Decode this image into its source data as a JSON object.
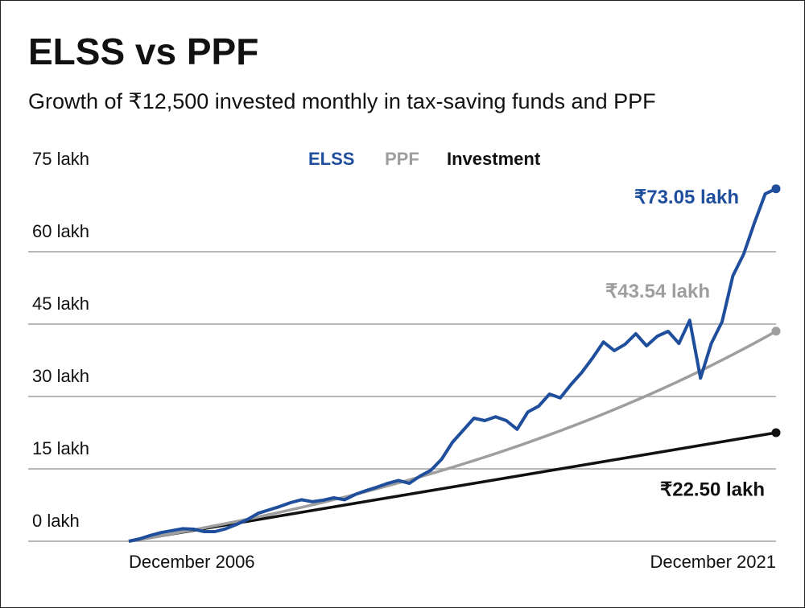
{
  "chart_data": {
    "type": "line",
    "title": "ELSS vs PPF",
    "subtitle": "Growth of ₹12,500 invested monthly in tax-saving funds and PPF",
    "categories": [
      "December 2006",
      null,
      null,
      null,
      null,
      null,
      null,
      null,
      null,
      null,
      null,
      null,
      null,
      null,
      null,
      null,
      null,
      null,
      null,
      null,
      null,
      null,
      null,
      null,
      null,
      null,
      null,
      null,
      null,
      null,
      null,
      null,
      null,
      null,
      null,
      null,
      null,
      null,
      null,
      null,
      null,
      null,
      null,
      null,
      null,
      null,
      null,
      null,
      null,
      null,
      null,
      null,
      null,
      null,
      null,
      null,
      null,
      null,
      null,
      null,
      "December 2021"
    ],
    "ylim": [
      0,
      75
    ],
    "yticks": [
      {
        "value": 0,
        "label": "0 lakh"
      },
      {
        "value": 15,
        "label": "15 lakh"
      },
      {
        "value": 30,
        "label": "30 lakh"
      },
      {
        "value": 45,
        "label": "45 lakh"
      },
      {
        "value": 60,
        "label": "60 lakh"
      },
      {
        "value": 75,
        "label": "75 lakh"
      }
    ],
    "grid": true,
    "legend": "top",
    "series": [
      {
        "name": "ELSS",
        "color": "#1f4e9c",
        "values": [
          0,
          0.5,
          1.2,
          1.8,
          2.2,
          2.6,
          2.5,
          2.0,
          2.0,
          2.6,
          3.5,
          4.5,
          5.8,
          6.5,
          7.2,
          8.0,
          8.6,
          8.2,
          8.5,
          9.0,
          8.6,
          9.7,
          10.5,
          11.2,
          12.0,
          12.6,
          12.0,
          13.5,
          14.7,
          17.0,
          20.5,
          23.0,
          25.5,
          25.0,
          25.8,
          25.0,
          23.2,
          26.8,
          28.0,
          30.5,
          29.7,
          32.5,
          35.0,
          38.0,
          41.3,
          39.5,
          40.8,
          43.0,
          40.5,
          42.5,
          43.5,
          41.0,
          45.8,
          33.8,
          41.0,
          45.5,
          55.0,
          59.5,
          66.0,
          72.0,
          73.05
        ],
        "value_labels": [
          null,
          null,
          null,
          null,
          null,
          null,
          null,
          null,
          null,
          null,
          null,
          null,
          null,
          null,
          null,
          null,
          null,
          null,
          null,
          null,
          null,
          null,
          null,
          null,
          null,
          null,
          null,
          null,
          null,
          null,
          null,
          null,
          null,
          null,
          null,
          null,
          null,
          null,
          null,
          null,
          null,
          null,
          null,
          null,
          null,
          null,
          null,
          null,
          null,
          null,
          null,
          null,
          null,
          null,
          null,
          null,
          null,
          null,
          null,
          null,
          "₹73.05 lakh"
        ]
      },
      {
        "name": "PPF",
        "color": "#9e9e9e",
        "values": [
          0,
          0.375,
          0.757,
          1.149,
          1.546,
          1.953,
          2.368,
          2.791,
          3.225,
          3.665,
          4.115,
          4.574,
          5.042,
          5.521,
          6.012,
          6.509,
          7.017,
          7.536,
          8.065,
          8.606,
          9.156,
          9.72,
          10.29,
          10.88,
          11.48,
          12.09,
          12.71,
          13.34,
          13.99,
          14.65,
          15.33,
          16.02,
          16.72,
          17.44,
          18.17,
          18.92,
          19.68,
          20.46,
          21.26,
          22.07,
          22.89,
          23.74,
          24.6,
          25.48,
          26.38,
          27.29,
          28.23,
          29.18,
          30.15,
          31.15,
          32.16,
          33.19,
          34.25,
          35.33,
          36.43,
          37.55,
          38.69,
          39.86,
          41.05,
          42.27,
          43.54
        ],
        "value_labels": [
          null,
          null,
          null,
          null,
          null,
          null,
          null,
          null,
          null,
          null,
          null,
          null,
          null,
          null,
          null,
          null,
          null,
          null,
          null,
          null,
          null,
          null,
          null,
          null,
          null,
          null,
          null,
          null,
          null,
          null,
          null,
          null,
          null,
          null,
          null,
          null,
          null,
          null,
          null,
          null,
          null,
          null,
          null,
          null,
          null,
          null,
          null,
          null,
          null,
          null,
          null,
          null,
          null,
          null,
          null,
          null,
          null,
          null,
          null,
          null,
          "₹43.54 lakh"
        ]
      },
      {
        "name": "Investment",
        "color": "#111111",
        "values": [
          0,
          0.375,
          0.75,
          1.125,
          1.5,
          1.875,
          2.25,
          2.625,
          3.0,
          3.375,
          3.75,
          4.125,
          4.5,
          4.875,
          5.25,
          5.625,
          6.0,
          6.375,
          6.75,
          7.125,
          7.5,
          7.875,
          8.25,
          8.625,
          9.0,
          9.375,
          9.75,
          10.125,
          10.5,
          10.875,
          11.25,
          11.625,
          12.0,
          12.375,
          12.75,
          13.125,
          13.5,
          13.875,
          14.25,
          14.625,
          15.0,
          15.375,
          15.75,
          16.125,
          16.5,
          16.875,
          17.25,
          17.625,
          18.0,
          18.375,
          18.75,
          19.125,
          19.5,
          19.875,
          20.25,
          20.625,
          21.0,
          21.375,
          21.75,
          22.125,
          22.5
        ],
        "value_labels": [
          null,
          null,
          null,
          null,
          null,
          null,
          null,
          null,
          null,
          null,
          null,
          null,
          null,
          null,
          null,
          null,
          null,
          null,
          null,
          null,
          null,
          null,
          null,
          null,
          null,
          null,
          null,
          null,
          null,
          null,
          null,
          null,
          null,
          null,
          null,
          null,
          null,
          null,
          null,
          null,
          null,
          null,
          null,
          null,
          null,
          null,
          null,
          null,
          null,
          null,
          null,
          null,
          null,
          null,
          null,
          null,
          null,
          null,
          null,
          null,
          "₹22.50 lakh"
        ]
      }
    ]
  }
}
